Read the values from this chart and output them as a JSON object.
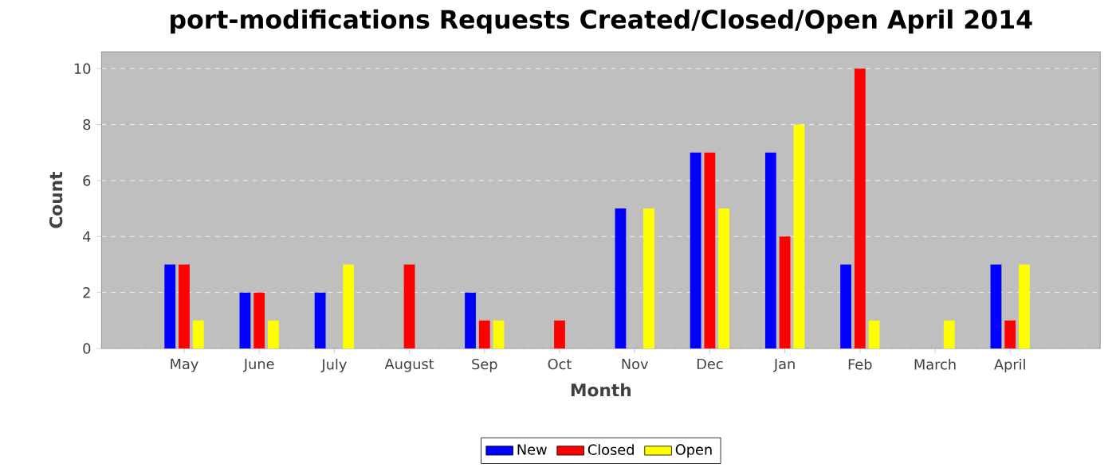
{
  "chart_data": {
    "type": "bar",
    "title": "port-modifications Requests Created/Closed/Open April 2014",
    "xlabel": "Month",
    "ylabel": "Count",
    "categories": [
      "May",
      "June",
      "July",
      "August",
      "Sep",
      "Oct",
      "Nov",
      "Dec",
      "Jan",
      "Feb",
      "March",
      "April"
    ],
    "series": [
      {
        "name": "New",
        "color": "#0000ff",
        "values": [
          3,
          2,
          2,
          0,
          2,
          0,
          5,
          7,
          7,
          3,
          0,
          3
        ]
      },
      {
        "name": "Closed",
        "color": "#ff0000",
        "values": [
          3,
          2,
          0,
          3,
          1,
          1,
          0,
          7,
          4,
          10,
          0,
          1
        ]
      },
      {
        "name": "Open",
        "color": "#ffff00",
        "values": [
          1,
          1,
          3,
          0,
          1,
          0,
          5,
          5,
          8,
          1,
          1,
          3
        ]
      }
    ],
    "ylim": [
      0,
      10.6
    ],
    "yticks": [
      0,
      2,
      4,
      6,
      8,
      10
    ],
    "grid": "y",
    "legend": "bottom"
  }
}
